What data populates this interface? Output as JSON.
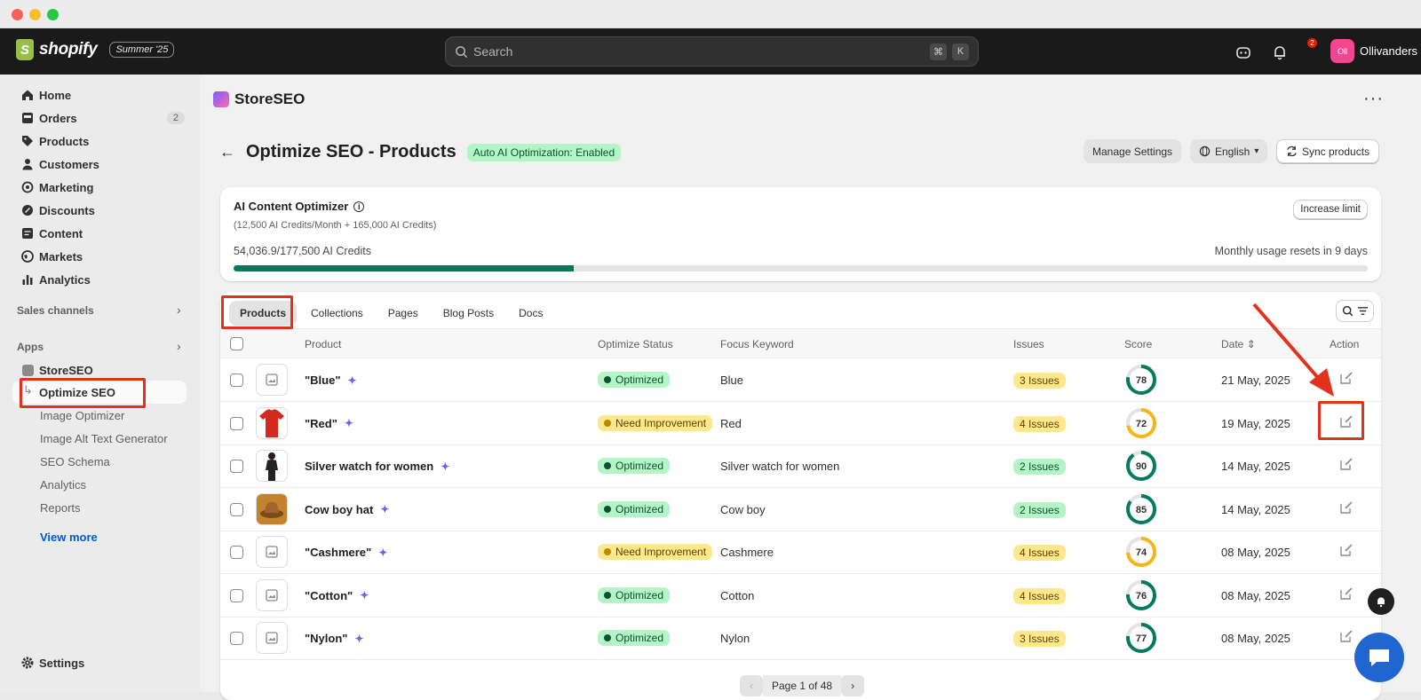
{
  "window": {
    "traffic_colors": [
      "#ff5f57",
      "#febc2e",
      "#28c840"
    ]
  },
  "topbar": {
    "brand": "shopify",
    "brand_letter": "S",
    "edition": "Summer '25",
    "search_placeholder": "Search",
    "shortcut": [
      "⌘",
      "K"
    ],
    "notifications_count": "2",
    "store_initials": "Oll",
    "store_name": "Ollivanders"
  },
  "sidebar": {
    "items": [
      {
        "label": "Home",
        "icon": "home-icon"
      },
      {
        "label": "Orders",
        "icon": "orders-icon",
        "badge": "2"
      },
      {
        "label": "Products",
        "icon": "tag-icon"
      },
      {
        "label": "Customers",
        "icon": "person-icon"
      },
      {
        "label": "Marketing",
        "icon": "target-icon"
      },
      {
        "label": "Discounts",
        "icon": "discount-icon"
      },
      {
        "label": "Content",
        "icon": "content-icon"
      },
      {
        "label": "Markets",
        "icon": "globe-icon"
      },
      {
        "label": "Analytics",
        "icon": "chart-icon"
      }
    ],
    "sales_channels": "Sales channels",
    "apps": "Apps",
    "app_name": "StoreSEO",
    "sub_items": [
      "Optimize SEO",
      "Image Optimizer",
      "Image Alt Text Generator",
      "SEO Schema",
      "Analytics",
      "Reports"
    ],
    "view_more": "View more",
    "settings": "Settings"
  },
  "app": {
    "name": "StoreSEO"
  },
  "page": {
    "title": "Optimize SEO - Products",
    "ai_badge": "Auto AI Optimization: Enabled",
    "manage_settings": "Manage Settings",
    "language": "English",
    "sync": "Sync products"
  },
  "ai_card": {
    "title": "AI Content Optimizer",
    "subtitle": "(12,500 AI Credits/Month + 165,000 AI Credits)",
    "credits": "54,036.9/177,500 AI Credits",
    "reset": "Monthly usage resets in 9 days",
    "increase_btn": "Increase limit",
    "usage_fraction": 0.3
  },
  "tabs": [
    "Products",
    "Collections",
    "Pages",
    "Blog Posts",
    "Docs"
  ],
  "table": {
    "headers": {
      "product": "Product",
      "status": "Optimize Status",
      "keyword": "Focus Keyword",
      "issues": "Issues",
      "score": "Score",
      "date": "Date",
      "action": "Action"
    },
    "rows": [
      {
        "name": "\"Blue\"",
        "status": "Optimized",
        "keyword": "Blue",
        "issues": "3 Issues",
        "score": "78",
        "score_value": 78,
        "date": "21 May, 2025",
        "thumb": "placeholder"
      },
      {
        "name": "\"Red\"",
        "status": "Need Improvement",
        "keyword": "Red",
        "issues": "4 Issues",
        "score": "72",
        "score_value": 72,
        "date": "19 May, 2025",
        "thumb": "red-shirt"
      },
      {
        "name": "Silver watch for women",
        "status": "Optimized",
        "keyword": "Silver watch for women",
        "issues": "2 Issues",
        "score": "90",
        "score_value": 90,
        "date": "14 May, 2025",
        "thumb": "woman"
      },
      {
        "name": "Cow boy hat",
        "status": "Optimized",
        "keyword": "Cow boy",
        "issues": "2 Issues",
        "score": "85",
        "score_value": 85,
        "date": "14 May, 2025",
        "thumb": "hat"
      },
      {
        "name": "\"Cashmere\"",
        "status": "Need Improvement",
        "keyword": "Cashmere",
        "issues": "4 Issues",
        "score": "74",
        "score_value": 74,
        "date": "08 May, 2025",
        "thumb": "placeholder"
      },
      {
        "name": "\"Cotton\"",
        "status": "Optimized",
        "keyword": "Cotton",
        "issues": "4 Issues",
        "score": "76",
        "score_value": 76,
        "date": "08 May, 2025",
        "thumb": "placeholder"
      },
      {
        "name": "\"Nylon\"",
        "status": "Optimized",
        "keyword": "Nylon",
        "issues": "3 Issues",
        "score": "77",
        "score_value": 77,
        "date": "08 May, 2025",
        "thumb": "placeholder"
      }
    ]
  },
  "pagination": {
    "label": "Page 1 of 48"
  },
  "colors": {
    "optimized_bg": "#b4f5c6",
    "improve_bg": "#ffe78c",
    "issues_green": "#b4f5c6",
    "issues_yellow": "#ffe78c",
    "score_green": "#047b5d",
    "score_yellow": "#f5b619",
    "highlight_red": "#e2321e"
  }
}
